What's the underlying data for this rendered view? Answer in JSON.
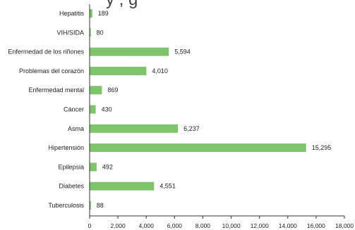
{
  "title_fragment": "y   , g",
  "chart_data": {
    "type": "bar",
    "orientation": "horizontal",
    "categories": [
      "Hepatitis",
      "VIH/SIDA",
      "Enfermedad de los riñones",
      "Problemas del corazón",
      "Enfermedad mental",
      "Cáncer",
      "Asma",
      "Hipertensión",
      "Epilepsia",
      "Diabetes",
      "Tuberculosis"
    ],
    "values": [
      189,
      80,
      5594,
      4010,
      869,
      430,
      6237,
      15295,
      492,
      4551,
      88
    ],
    "value_labels": [
      "189",
      "80",
      "5,594",
      "4,010",
      "869",
      "430",
      "6,237",
      "15,295",
      "492",
      "4,551",
      "88"
    ],
    "xlim": [
      0,
      18000
    ],
    "xticks": [
      0,
      2000,
      4000,
      6000,
      8000,
      10000,
      12000,
      14000,
      16000,
      18000
    ],
    "xtick_labels": [
      "0",
      "2,000",
      "4,000",
      "6,000",
      "8,000",
      "10,000",
      "12,000",
      "14,000",
      "16,000",
      "18,000"
    ],
    "grid": false,
    "bar_color": "#7ec46a",
    "axis_color": "#333333"
  }
}
